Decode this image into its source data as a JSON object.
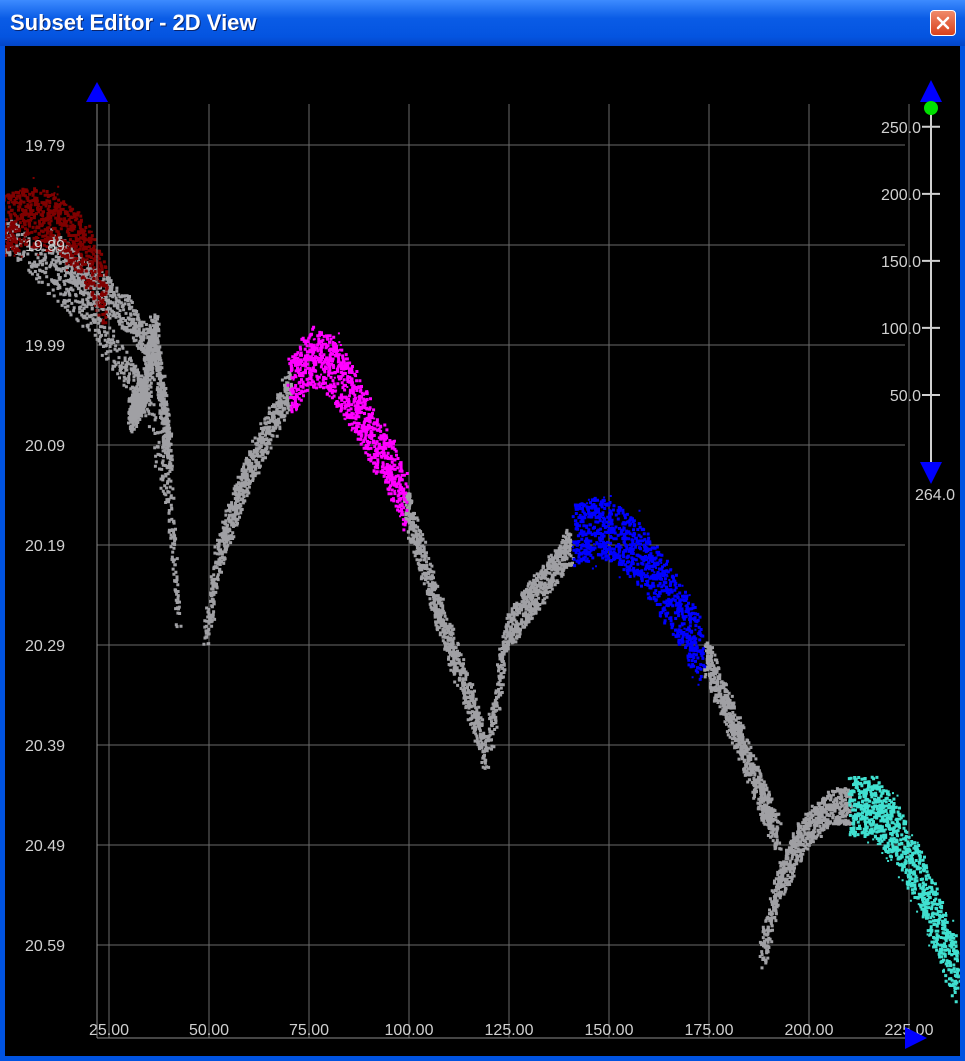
{
  "window": {
    "title": "Subset Editor - 2D View"
  },
  "icons": {
    "close": "close-icon",
    "y_top_arrow": "triangle-up-icon",
    "x_right_arrow": "triangle-right-icon",
    "slider_top_arrow": "triangle-up-icon",
    "slider_bottom_arrow": "triangle-down-icon",
    "slider_handle": "circle-icon"
  },
  "colors": {
    "background": "#000000",
    "grid": "#6a6a6a",
    "axis_text": "#d0d0d0",
    "base_points": "#a0a0a4",
    "arrow": "#0000ff",
    "slider_handle": "#00e000"
  },
  "chart_data": {
    "type": "scatter",
    "x_ticks": [
      "25.00",
      "50.00",
      "75.00",
      "100.00",
      "125.00",
      "150.00",
      "175.00",
      "200.00",
      "225.00"
    ],
    "y_ticks": [
      "19.79",
      "19.89",
      "19.99",
      "20.09",
      "20.19",
      "20.29",
      "20.39",
      "20.49",
      "20.59"
    ],
    "xlim": [
      0,
      225
    ],
    "ylim": [
      19.74,
      20.68
    ],
    "y_inverted": true,
    "grid": true,
    "slider": {
      "ticks": [
        "250.0",
        "200.0",
        "150.0",
        "100.0",
        "50.0"
      ],
      "bottom_label": "264.0",
      "range": [
        0,
        264
      ],
      "handle_value": 264
    },
    "series": [
      {
        "color": "#a0a0a4",
        "segments": [
          {
            "x": [
              -25,
              -10,
              0,
              20,
              35,
              40,
              42
            ],
            "y": [
              19.87,
              19.89,
              19.88,
              19.96,
              20.05,
              20.16,
              20.26
            ]
          },
          {
            "x": [
              10,
              30,
              37,
              40,
              42
            ],
            "y": [
              19.89,
              19.96,
              20.01,
              20.14,
              20.26
            ]
          },
          {
            "x": [
              30,
              34,
              36,
              38,
              40
            ],
            "y": [
              20.06,
              20.03,
              19.97,
              20.04,
              20.1
            ]
          },
          {
            "x": [
              49,
              52,
              58,
              65,
              70
            ],
            "y": [
              20.28,
              20.2,
              20.13,
              20.07,
              20.03
            ]
          },
          {
            "x": [
              99,
              106,
              112,
              117,
              119
            ],
            "y": [
              20.15,
              20.24,
              20.31,
              20.37,
              20.4
            ]
          },
          {
            "x": [
              120,
              124,
              131,
              140
            ],
            "y": [
              20.38,
              20.28,
              20.24,
              20.19
            ]
          },
          {
            "x": [
              174,
              180,
              186,
              192
            ],
            "y": [
              20.3,
              20.36,
              20.42,
              20.48
            ]
          },
          {
            "x": [
              188,
              192,
              198,
              205,
              210
            ],
            "y": [
              20.6,
              20.53,
              20.48,
              20.45,
              20.45
            ]
          }
        ]
      },
      {
        "color": "#800000",
        "segments": [
          {
            "x": [
              -10,
              -2,
              5,
              12,
              18,
              24
            ],
            "y": [
              19.89,
              19.87,
              19.86,
              19.87,
              19.89,
              19.94
            ]
          }
        ]
      },
      {
        "color": "#ff00ff",
        "segments": [
          {
            "x": [
              70,
              75,
              80,
              84,
              88,
              92,
              96,
              99
            ],
            "y": [
              20.03,
              20.0,
              20.01,
              20.03,
              20.06,
              20.09,
              20.12,
              20.15
            ]
          }
        ]
      },
      {
        "color": "#0000ff",
        "segments": [
          {
            "x": [
              141,
              147,
              152,
              158,
              163,
              168,
              173
            ],
            "y": [
              20.18,
              20.17,
              20.18,
              20.2,
              20.23,
              20.26,
              20.3
            ]
          }
        ]
      },
      {
        "color": "#40e0d0",
        "segments": [
          {
            "x": [
              210,
              216,
              222,
              228,
              234,
              237
            ],
            "y": [
              20.45,
              20.45,
              20.48,
              20.53,
              20.59,
              20.62
            ]
          }
        ]
      }
    ]
  }
}
